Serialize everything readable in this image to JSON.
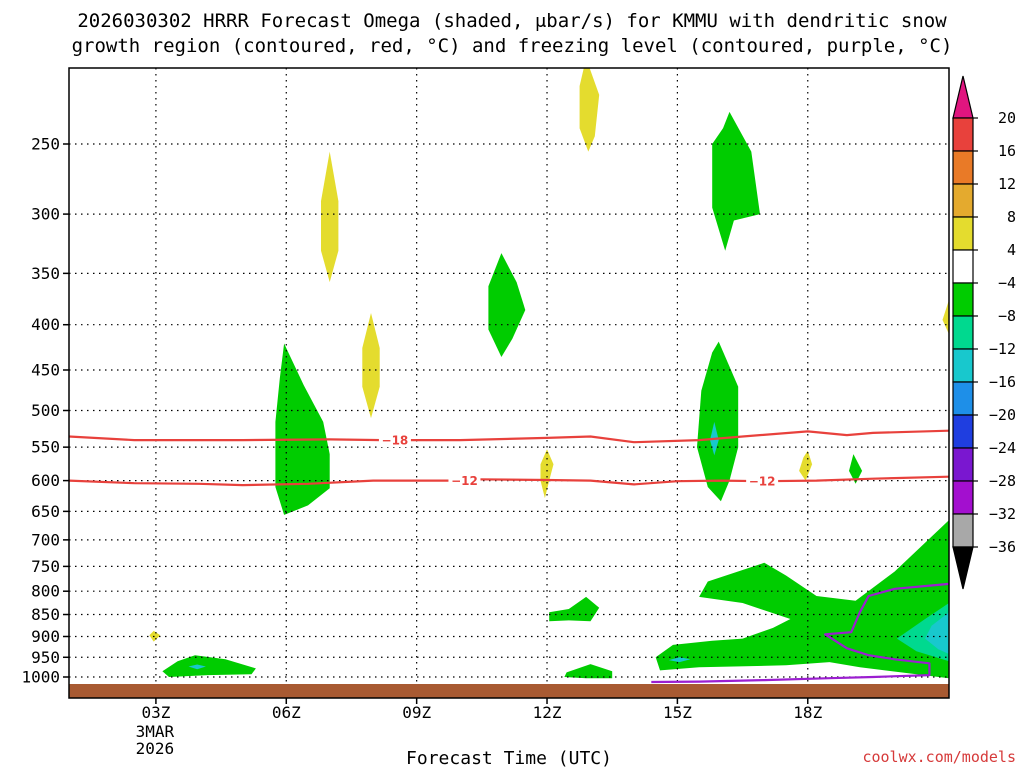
{
  "chart_data": {
    "type": "heatmap",
    "title_line1": "2026030302 HRRR Forecast Omega (shaded, μbar/s) for KMMU with dendritic snow",
    "title_line2": "growth region (contoured, red, °C) and freezing level (contoured, purple, °C)",
    "xlabel": "Forecast Time (UTC)",
    "credit": "coolwx.com/models",
    "x_range": [
      1.0,
      21.25
    ],
    "y_range": [
      1040,
      200
    ],
    "x_ticks": [
      {
        "x": 3,
        "label": "03Z",
        "sub": [
          "3MAR",
          "2026"
        ]
      },
      {
        "x": 6,
        "label": "06Z",
        "sub": []
      },
      {
        "x": 9,
        "label": "09Z",
        "sub": []
      },
      {
        "x": 12,
        "label": "12Z",
        "sub": []
      },
      {
        "x": 15,
        "label": "15Z",
        "sub": []
      },
      {
        "x": 18,
        "label": "18Z",
        "sub": []
      }
    ],
    "y_ticks": [
      {
        "p": 250,
        "label": "250"
      },
      {
        "p": 300,
        "label": "300"
      },
      {
        "p": 350,
        "label": "350"
      },
      {
        "p": 400,
        "label": "400"
      },
      {
        "p": 450,
        "label": "450"
      },
      {
        "p": 500,
        "label": "500"
      },
      {
        "p": 550,
        "label": "550"
      },
      {
        "p": 600,
        "label": "600"
      },
      {
        "p": 650,
        "label": "650"
      },
      {
        "p": 700,
        "label": "700"
      },
      {
        "p": 750,
        "label": "750"
      },
      {
        "p": 800,
        "label": "800"
      },
      {
        "p": 850,
        "label": "850"
      },
      {
        "p": 900,
        "label": "900"
      },
      {
        "p": 950,
        "label": "950"
      },
      {
        "p": 1000,
        "label": "1000"
      }
    ],
    "colorbar": [
      {
        "label": "20",
        "color": "#e0157f"
      },
      {
        "label": "16",
        "color": "#e8413c"
      },
      {
        "label": "12",
        "color": "#e97a27"
      },
      {
        "label": "8",
        "color": "#e4aa2e"
      },
      {
        "label": "4",
        "color": "#e4dc2e"
      },
      {
        "label": "−4",
        "color": "#ffffff"
      },
      {
        "label": "−8",
        "color": "#00cc00"
      },
      {
        "label": "−12",
        "color": "#00d98f"
      },
      {
        "label": "−16",
        "color": "#18c8cd"
      },
      {
        "label": "−20",
        "color": "#1e8fe8"
      },
      {
        "label": "−24",
        "color": "#1f3ee0"
      },
      {
        "label": "−28",
        "color": "#7a17d0"
      },
      {
        "label": "−32",
        "color": "#a30fcf"
      },
      {
        "label": "−36",
        "color": "#a8a8a8"
      }
    ],
    "colorbar_bottom_color": "#000000",
    "ground_color": "#a85a32",
    "shaded_regions": [
      {
        "name": "yellow-07z-300",
        "color": "#e4dc2e",
        "pts": [
          [
            7.0,
            255
          ],
          [
            7.2,
            290
          ],
          [
            7.2,
            330
          ],
          [
            7.0,
            358
          ],
          [
            6.8,
            330
          ],
          [
            6.8,
            290
          ]
        ]
      },
      {
        "name": "yellow-08z-450",
        "color": "#e4dc2e",
        "pts": [
          [
            7.95,
            388
          ],
          [
            8.15,
            425
          ],
          [
            8.15,
            470
          ],
          [
            7.95,
            510
          ],
          [
            7.75,
            470
          ],
          [
            7.75,
            425
          ]
        ]
      },
      {
        "name": "yellow-13z-top",
        "color": "#e4dc2e",
        "pts": [
          [
            12.9,
            200
          ],
          [
            13.2,
            220
          ],
          [
            13.1,
            245
          ],
          [
            12.95,
            255
          ],
          [
            12.75,
            240
          ],
          [
            12.75,
            215
          ]
        ]
      },
      {
        "name": "yellow-12z-580",
        "color": "#e4dc2e",
        "pts": [
          [
            12.0,
            553
          ],
          [
            12.15,
            575
          ],
          [
            12.05,
            600
          ],
          [
            11.95,
            628
          ],
          [
            11.85,
            600
          ],
          [
            11.85,
            575
          ]
        ]
      },
      {
        "name": "yellow-18z-580",
        "color": "#e4dc2e",
        "pts": [
          [
            18.0,
            555
          ],
          [
            18.1,
            575
          ],
          [
            17.95,
            600
          ],
          [
            17.8,
            585
          ],
          [
            17.9,
            565
          ]
        ]
      },
      {
        "name": "yellow-03z-900",
        "color": "#e4dc2e",
        "pts": [
          [
            2.95,
            887
          ],
          [
            3.1,
            897
          ],
          [
            2.95,
            912
          ],
          [
            2.85,
            897
          ]
        ]
      },
      {
        "name": "yellow-right-edge",
        "color": "#e4dc2e",
        "pts": [
          [
            21.25,
            375
          ],
          [
            21.25,
            410
          ],
          [
            21.1,
            395
          ]
        ]
      },
      {
        "name": "green-06z-column",
        "color": "#00cc00",
        "pts": [
          [
            5.95,
            420
          ],
          [
            6.4,
            468
          ],
          [
            6.85,
            515
          ],
          [
            7.0,
            560
          ],
          [
            7.0,
            612
          ],
          [
            6.5,
            640
          ],
          [
            5.95,
            656
          ],
          [
            5.75,
            610
          ],
          [
            5.75,
            515
          ],
          [
            5.85,
            460
          ]
        ]
      },
      {
        "name": "green-11z-370",
        "color": "#00cc00",
        "pts": [
          [
            10.95,
            332
          ],
          [
            11.3,
            358
          ],
          [
            11.5,
            385
          ],
          [
            11.2,
            415
          ],
          [
            10.95,
            435
          ],
          [
            10.65,
            405
          ],
          [
            10.65,
            362
          ]
        ]
      },
      {
        "name": "green-16z-top",
        "color": "#00cc00",
        "pts": [
          [
            16.2,
            230
          ],
          [
            16.7,
            255
          ],
          [
            16.9,
            300
          ],
          [
            16.3,
            305
          ],
          [
            16.1,
            330
          ],
          [
            15.8,
            295
          ],
          [
            15.8,
            250
          ],
          [
            16.05,
            240
          ]
        ]
      },
      {
        "name": "green-16z-mid",
        "color": "#00cc00",
        "pts": [
          [
            15.95,
            418
          ],
          [
            16.4,
            470
          ],
          [
            16.4,
            550
          ],
          [
            16.2,
            600
          ],
          [
            16.0,
            633
          ],
          [
            15.7,
            610
          ],
          [
            15.45,
            550
          ],
          [
            15.55,
            475
          ],
          [
            15.8,
            430
          ]
        ]
      },
      {
        "name": "green-19z-580",
        "color": "#00cc00",
        "pts": [
          [
            19.05,
            560
          ],
          [
            19.25,
            585
          ],
          [
            19.1,
            605
          ],
          [
            18.95,
            585
          ]
        ]
      },
      {
        "name": "green-12z-860",
        "color": "#00cc00",
        "pts": [
          [
            12.9,
            812
          ],
          [
            13.2,
            835
          ],
          [
            13.0,
            865
          ],
          [
            12.5,
            863
          ],
          [
            12.05,
            865
          ],
          [
            12.05,
            845
          ],
          [
            12.5,
            838
          ]
        ]
      },
      {
        "name": "green-04z-980",
        "color": "#00cc00",
        "pts": [
          [
            3.9,
            945
          ],
          [
            4.6,
            955
          ],
          [
            5.3,
            978
          ],
          [
            5.2,
            993
          ],
          [
            4.2,
            995
          ],
          [
            3.3,
            1000
          ],
          [
            3.15,
            985
          ],
          [
            3.5,
            960
          ]
        ]
      },
      {
        "name": "green-13z-990",
        "color": "#00cc00",
        "pts": [
          [
            13.0,
            967
          ],
          [
            13.5,
            985
          ],
          [
            13.5,
            1003
          ],
          [
            12.9,
            1003
          ],
          [
            12.4,
            1000
          ],
          [
            12.45,
            988
          ]
        ]
      },
      {
        "name": "green-lower-right",
        "color": "#00cc00",
        "pts": [
          [
            17.0,
            743
          ],
          [
            17.5,
            768
          ],
          [
            18.2,
            810
          ],
          [
            19.1,
            820
          ],
          [
            20.0,
            760
          ],
          [
            21.25,
            665
          ],
          [
            21.25,
            1003
          ],
          [
            19.2,
            975
          ],
          [
            18.5,
            962
          ],
          [
            17.5,
            970
          ],
          [
            15.5,
            975
          ],
          [
            14.6,
            983
          ],
          [
            14.5,
            950
          ],
          [
            14.9,
            920
          ],
          [
            15.8,
            910
          ],
          [
            16.5,
            905
          ],
          [
            17.2,
            880
          ],
          [
            17.6,
            860
          ],
          [
            16.5,
            825
          ],
          [
            15.5,
            812
          ],
          [
            15.7,
            780
          ]
        ]
      },
      {
        "name": "teal-lower-right",
        "color": "#00d98f",
        "pts": [
          [
            21.25,
            825
          ],
          [
            20.7,
            860
          ],
          [
            20.05,
            905
          ],
          [
            20.5,
            935
          ],
          [
            21.25,
            960
          ]
        ]
      },
      {
        "name": "cyan-lower-right",
        "color": "#18c8cd",
        "pts": [
          [
            21.25,
            845
          ],
          [
            20.85,
            875
          ],
          [
            20.7,
            905
          ],
          [
            21.0,
            930
          ],
          [
            21.25,
            942
          ]
        ]
      },
      {
        "name": "cyan-04z-980",
        "color": "#18c8cd",
        "pts": [
          [
            3.95,
            968
          ],
          [
            4.15,
            973
          ],
          [
            3.95,
            980
          ],
          [
            3.75,
            973
          ]
        ]
      },
      {
        "name": "cyan-16z-530",
        "color": "#18c8cd",
        "pts": [
          [
            15.85,
            515
          ],
          [
            15.95,
            540
          ],
          [
            15.85,
            562
          ],
          [
            15.75,
            540
          ]
        ]
      },
      {
        "name": "cyan-15z-955",
        "color": "#18c8cd",
        "pts": [
          [
            15.05,
            950
          ],
          [
            15.3,
            955
          ],
          [
            15.05,
            962
          ],
          [
            14.8,
            957
          ]
        ]
      }
    ],
    "contours": [
      {
        "name": "dgz-minus18",
        "kind": "dgz",
        "color": "#e8413c",
        "label": "−18",
        "label_at": [
          8.5,
          540
        ],
        "pts": [
          [
            1.0,
            535
          ],
          [
            2.5,
            540
          ],
          [
            5.0,
            540
          ],
          [
            7.0,
            539
          ],
          [
            8.2,
            540
          ],
          [
            9.0,
            540
          ],
          [
            10.0,
            540
          ],
          [
            12.0,
            537
          ],
          [
            13.0,
            535
          ],
          [
            14.0,
            543
          ],
          [
            15.5,
            540
          ],
          [
            16.5,
            535
          ],
          [
            18.0,
            528
          ],
          [
            18.9,
            533
          ],
          [
            19.5,
            530
          ],
          [
            21.25,
            527
          ]
        ]
      },
      {
        "name": "dgz-minus12",
        "kind": "dgz",
        "color": "#e8413c",
        "label": "−12",
        "label_at": [
          10.1,
          600
        ],
        "pts": [
          [
            1.0,
            600
          ],
          [
            2.5,
            604
          ],
          [
            4.0,
            605
          ],
          [
            5.0,
            607
          ],
          [
            6.5,
            605
          ],
          [
            8.0,
            600
          ],
          [
            9.8,
            600
          ],
          [
            10.4,
            598
          ],
          [
            12.0,
            599
          ],
          [
            13.0,
            600
          ],
          [
            14.0,
            606
          ],
          [
            15.0,
            601
          ],
          [
            16.0,
            600
          ],
          [
            17.0,
            601
          ],
          [
            18.2,
            600
          ],
          [
            19.5,
            597
          ],
          [
            21.25,
            594
          ]
        ]
      },
      {
        "name": "dgz-minus12-label-right",
        "kind": "label-only",
        "color": "#e8413c",
        "label": "−12",
        "label_at": [
          16.95,
          601
        ],
        "pts": []
      },
      {
        "name": "freezing-level-0c",
        "kind": "freezing",
        "color": "#9b1ed0",
        "pts": [
          [
            14.4,
            1013
          ],
          [
            15.5,
            1012
          ],
          [
            17.0,
            1008
          ],
          [
            18.5,
            1003
          ],
          [
            19.5,
            1000
          ],
          [
            20.8,
            995
          ],
          [
            20.8,
            965
          ],
          [
            20.0,
            955
          ],
          [
            19.4,
            945
          ],
          [
            18.9,
            928
          ],
          [
            18.4,
            895
          ],
          [
            19.0,
            890
          ],
          [
            19.2,
            845
          ],
          [
            19.4,
            810
          ],
          [
            20.0,
            795
          ],
          [
            21.25,
            785
          ]
        ]
      }
    ]
  }
}
